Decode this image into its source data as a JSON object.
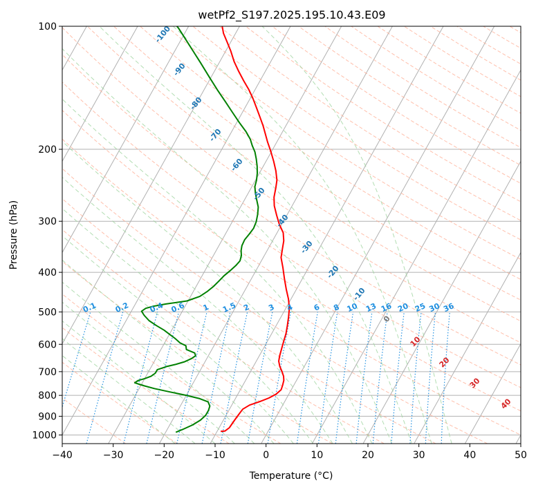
{
  "chart_data": {
    "type": "line",
    "subtype": "skew-t log-p diagram",
    "title": "wetPf2_S197.2025.195.10.43.E09",
    "xlabel": "Temperature (°C)",
    "ylabel": "Pressure (hPa)",
    "xlim": [
      -40,
      50
    ],
    "ylim": [
      1050,
      100
    ],
    "y_scale": "log",
    "x_ticks": [
      "−40",
      "−30",
      "−20",
      "−10",
      "0",
      "10",
      "20",
      "30",
      "40",
      "50"
    ],
    "y_ticks": [
      "100",
      "200",
      "300",
      "400",
      "500",
      "600",
      "700",
      "800",
      "900",
      "1000"
    ],
    "grid": true,
    "series": [
      {
        "color": "#ff0000",
        "points": [
          [
            -9.3,
            980
          ],
          [
            -8.5,
            978
          ],
          [
            -8,
            960
          ],
          [
            -7.8,
            920
          ],
          [
            -7.6,
            890
          ],
          [
            -7.4,
            865
          ],
          [
            -6.5,
            845
          ],
          [
            -5,
            830
          ],
          [
            -3.5,
            812
          ],
          [
            -2.5,
            795
          ],
          [
            -2,
            775
          ],
          [
            -2.2,
            755
          ],
          [
            -2.5,
            735
          ],
          [
            -3,
            718
          ],
          [
            -3.8,
            700
          ],
          [
            -4.8,
            680
          ],
          [
            -5.6,
            660
          ],
          [
            -6,
            640
          ],
          [
            -6.4,
            615
          ],
          [
            -6.8,
            590
          ],
          [
            -7.2,
            565
          ],
          [
            -7.8,
            540
          ],
          [
            -8.5,
            515
          ],
          [
            -9.3,
            490
          ],
          [
            -10.5,
            465
          ],
          [
            -12,
            440
          ],
          [
            -13.5,
            415
          ],
          [
            -15,
            390
          ],
          [
            -16.5,
            368
          ],
          [
            -17.2,
            350
          ],
          [
            -17.8,
            335
          ],
          [
            -18.8,
            320
          ],
          [
            -20.5,
            305
          ],
          [
            -22,
            290
          ],
          [
            -23.5,
            275
          ],
          [
            -24.5,
            262
          ],
          [
            -25.2,
            248
          ],
          [
            -25.8,
            238
          ],
          [
            -27,
            226
          ],
          [
            -28.5,
            214
          ],
          [
            -30.2,
            202
          ],
          [
            -31.8,
            192
          ],
          [
            -33.2,
            183
          ],
          [
            -34.5,
            175
          ],
          [
            -36.2,
            166
          ],
          [
            -37.8,
            158
          ],
          [
            -39.5,
            150
          ],
          [
            -41.2,
            143
          ],
          [
            -43.2,
            136
          ],
          [
            -45.2,
            129
          ],
          [
            -47.2,
            122
          ],
          [
            -49,
            115
          ],
          [
            -50.8,
            109
          ],
          [
            -52.4,
            104
          ],
          [
            -53.4,
            100
          ]
        ]
      },
      {
        "color": "#008000",
        "points": [
          [
            -18,
            985
          ],
          [
            -17,
            970
          ],
          [
            -15.5,
            945
          ],
          [
            -14.5,
            920
          ],
          [
            -14,
            895
          ],
          [
            -14,
            870
          ],
          [
            -14.2,
            850
          ],
          [
            -15,
            830
          ],
          [
            -17,
            815
          ],
          [
            -20,
            800
          ],
          [
            -23.5,
            785
          ],
          [
            -27,
            770
          ],
          [
            -29.5,
            757
          ],
          [
            -31.5,
            745
          ],
          [
            -31,
            735
          ],
          [
            -30,
            728
          ],
          [
            -29,
            718
          ],
          [
            -28.5,
            706
          ],
          [
            -28.5,
            692
          ],
          [
            -27,
            680
          ],
          [
            -25.5,
            672
          ],
          [
            -24,
            662
          ],
          [
            -23,
            650
          ],
          [
            -22.5,
            640
          ],
          [
            -23,
            630
          ],
          [
            -25,
            618
          ],
          [
            -25.5,
            605
          ],
          [
            -27,
            595
          ],
          [
            -28.5,
            580
          ],
          [
            -30,
            567
          ],
          [
            -31.5,
            554
          ],
          [
            -33.5,
            540
          ],
          [
            -35.5,
            525
          ],
          [
            -37,
            510
          ],
          [
            -38,
            498
          ],
          [
            -37.5,
            490
          ],
          [
            -36.2,
            484
          ],
          [
            -34,
            478
          ],
          [
            -30.2,
            470
          ],
          [
            -28.2,
            458
          ],
          [
            -27.3,
            446
          ],
          [
            -26.6,
            433
          ],
          [
            -26.1,
            420
          ],
          [
            -25.7,
            408
          ],
          [
            -25.1,
            397
          ],
          [
            -24.5,
            385
          ],
          [
            -24.2,
            375
          ],
          [
            -24.5,
            364
          ],
          [
            -25.1,
            354
          ],
          [
            -25.5,
            344
          ],
          [
            -25.6,
            333
          ],
          [
            -25.3,
            322
          ],
          [
            -25.1,
            312
          ],
          [
            -25.3,
            301
          ],
          [
            -25.8,
            289
          ],
          [
            -26.5,
            277
          ],
          [
            -27.6,
            266
          ],
          [
            -28.6,
            256
          ],
          [
            -29.4,
            247
          ],
          [
            -29.8,
            238
          ],
          [
            -30.4,
            229
          ],
          [
            -31.2,
            220
          ],
          [
            -32.2,
            211
          ],
          [
            -33.2,
            203
          ],
          [
            -34.4,
            196
          ],
          [
            -35.5,
            189
          ],
          [
            -37.2,
            181
          ],
          [
            -39.5,
            172
          ],
          [
            -41.8,
            163
          ],
          [
            -44.5,
            153
          ],
          [
            -47.4,
            143
          ],
          [
            -50.4,
            133
          ],
          [
            -53.6,
            123
          ],
          [
            -56.4,
            115
          ],
          [
            -59,
            108
          ],
          [
            -61.8,
            101
          ],
          [
            -62.3,
            100
          ]
        ]
      }
    ],
    "isotherm_labels": [
      "10",
      "20",
      "30",
      "40"
    ],
    "dry_adiabat_labels": [
      "-100",
      "-90",
      "-80",
      "-70",
      "-60",
      "-50",
      "-40",
      "-30",
      "-20",
      "-10",
      "0"
    ],
    "mixing_ratio_labels": [
      "0.1",
      "0.2",
      "0.4",
      "0.6",
      "1",
      "1.5",
      "2",
      "3",
      "4",
      "6",
      "8",
      "10",
      "13",
      "16",
      "20",
      "25",
      "30",
      "36"
    ],
    "colors": {
      "temperature": "#ff0000",
      "dewpoint": "#008000",
      "grid": "#b0b0b0",
      "dry_adiabat": "#ffa98f",
      "moist_adiabat": "#9fd49f",
      "mixing_ratio": "#1f8fe0",
      "theta_label": "#1f77b4",
      "isotherm_label": "#d62728"
    }
  }
}
